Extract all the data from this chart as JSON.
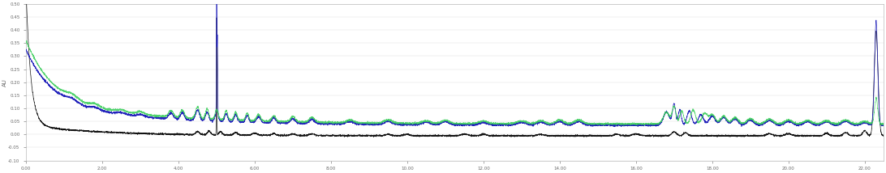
{
  "ylabel": "AU",
  "xlim": [
    0.0,
    22.5
  ],
  "ylim": [
    -0.1,
    0.5
  ],
  "yticks": [
    -0.1,
    -0.05,
    0.0,
    0.05,
    0.1,
    0.15,
    0.2,
    0.25,
    0.3,
    0.35,
    0.4,
    0.45,
    0.5
  ],
  "background_color": "#ffffff",
  "line_colors": {
    "black": "#111111",
    "violet": "#2222bb",
    "green": "#33cc55"
  },
  "figsize": [
    10.92,
    2.14
  ],
  "dpi": 100
}
